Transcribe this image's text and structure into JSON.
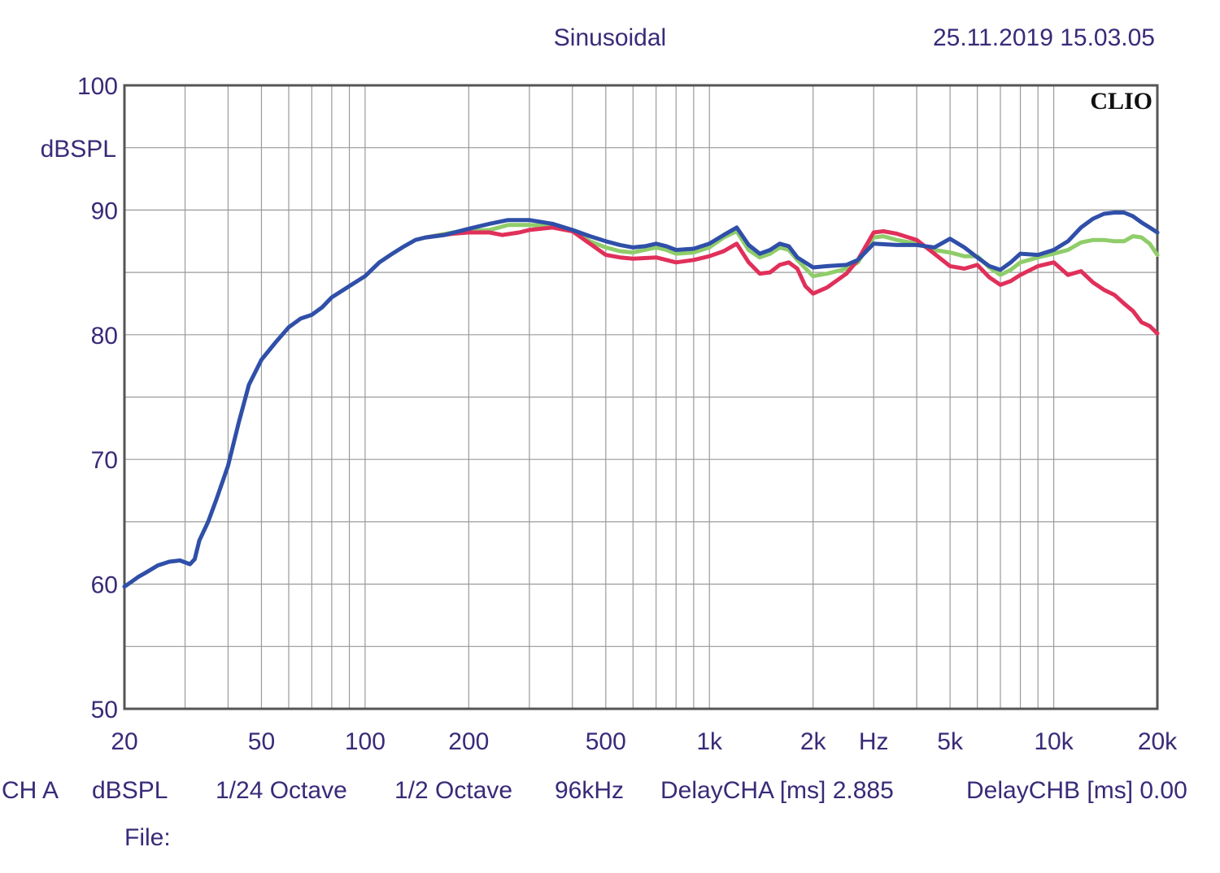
{
  "header": {
    "mode": "Sinusoidal",
    "timestamp": "25.11.2019 15.03.05",
    "brand": "CLIO"
  },
  "footer": {
    "items": [
      "CH A",
      "dBSPL",
      "1/24 Octave",
      "1/2 Octave",
      "96kHz",
      "DelayCHA [ms] 2.885",
      "DelayCHB [ms] 0.00"
    ],
    "file_label": "File:"
  },
  "colors": {
    "text": "#3a2a78",
    "grid": "#9a9a9a",
    "frame": "#555555",
    "blue": "#2f4fa8",
    "red": "#e0305a",
    "green": "#8fcd6a"
  },
  "chart_data": {
    "type": "line",
    "title": "Sinusoidal",
    "xscale": "log",
    "xlim": [
      20,
      20000
    ],
    "ylim": [
      50,
      100
    ],
    "ylabel": "dBSPL",
    "xlabel": "Hz",
    "yticks": [
      {
        "value": 100,
        "label": "100"
      },
      {
        "value": 90,
        "label": "90"
      },
      {
        "value": 80,
        "label": "80"
      },
      {
        "value": 70,
        "label": "70"
      },
      {
        "value": 60,
        "label": "60"
      },
      {
        "value": 50,
        "label": "50"
      }
    ],
    "xticks": [
      {
        "value": 20,
        "label": "20"
      },
      {
        "value": 50,
        "label": "50"
      },
      {
        "value": 100,
        "label": "100"
      },
      {
        "value": 200,
        "label": "200"
      },
      {
        "value": 500,
        "label": "500"
      },
      {
        "value": 1000,
        "label": "1k"
      },
      {
        "value": 2000,
        "label": "2k"
      },
      {
        "value": 3000,
        "label": "Hz"
      },
      {
        "value": 5000,
        "label": "5k"
      },
      {
        "value": 10000,
        "label": "10k"
      },
      {
        "value": 20000,
        "label": "20k"
      }
    ],
    "series": [
      {
        "name": "green",
        "color": "#8fcd6a",
        "points": [
          [
            150,
            87.8
          ],
          [
            180,
            88.2
          ],
          [
            200,
            88.3
          ],
          [
            230,
            88.4
          ],
          [
            260,
            88.8
          ],
          [
            300,
            88.8
          ],
          [
            350,
            88.7
          ],
          [
            400,
            88.3
          ],
          [
            450,
            87.5
          ],
          [
            500,
            87.0
          ],
          [
            550,
            86.7
          ],
          [
            600,
            86.6
          ],
          [
            700,
            87.0
          ],
          [
            750,
            86.8
          ],
          [
            800,
            86.5
          ],
          [
            900,
            86.6
          ],
          [
            1000,
            87.0
          ],
          [
            1100,
            87.8
          ],
          [
            1200,
            88.3
          ],
          [
            1300,
            86.8
          ],
          [
            1400,
            86.2
          ],
          [
            1500,
            86.5
          ],
          [
            1600,
            87.0
          ],
          [
            1700,
            86.8
          ],
          [
            1800,
            86.0
          ],
          [
            2000,
            84.7
          ],
          [
            2200,
            84.9
          ],
          [
            2500,
            85.3
          ],
          [
            2700,
            85.8
          ],
          [
            3000,
            87.8
          ],
          [
            3200,
            87.9
          ],
          [
            3500,
            87.6
          ],
          [
            4000,
            87.3
          ],
          [
            4500,
            86.8
          ],
          [
            5000,
            86.6
          ],
          [
            5500,
            86.3
          ],
          [
            6000,
            86.3
          ],
          [
            6500,
            85.4
          ],
          [
            7000,
            84.8
          ],
          [
            7500,
            85.2
          ],
          [
            8000,
            85.8
          ],
          [
            9000,
            86.2
          ],
          [
            10000,
            86.5
          ],
          [
            11000,
            86.8
          ],
          [
            12000,
            87.4
          ],
          [
            13000,
            87.6
          ],
          [
            14000,
            87.6
          ],
          [
            15000,
            87.5
          ],
          [
            16000,
            87.5
          ],
          [
            17000,
            87.9
          ],
          [
            18000,
            87.8
          ],
          [
            19000,
            87.3
          ],
          [
            20000,
            86.4
          ]
        ]
      },
      {
        "name": "red",
        "color": "#e0305a",
        "points": [
          [
            150,
            87.8
          ],
          [
            180,
            88.1
          ],
          [
            200,
            88.2
          ],
          [
            230,
            88.2
          ],
          [
            250,
            88.0
          ],
          [
            280,
            88.2
          ],
          [
            300,
            88.4
          ],
          [
            350,
            88.6
          ],
          [
            400,
            88.3
          ],
          [
            450,
            87.3
          ],
          [
            500,
            86.4
          ],
          [
            550,
            86.2
          ],
          [
            600,
            86.1
          ],
          [
            700,
            86.2
          ],
          [
            750,
            86.0
          ],
          [
            800,
            85.8
          ],
          [
            900,
            86.0
          ],
          [
            1000,
            86.3
          ],
          [
            1100,
            86.7
          ],
          [
            1200,
            87.3
          ],
          [
            1300,
            85.8
          ],
          [
            1400,
            84.9
          ],
          [
            1500,
            85.0
          ],
          [
            1600,
            85.6
          ],
          [
            1700,
            85.8
          ],
          [
            1800,
            85.3
          ],
          [
            1900,
            83.9
          ],
          [
            2000,
            83.3
          ],
          [
            2200,
            83.8
          ],
          [
            2500,
            84.9
          ],
          [
            2700,
            86.0
          ],
          [
            3000,
            88.2
          ],
          [
            3200,
            88.3
          ],
          [
            3500,
            88.1
          ],
          [
            4000,
            87.6
          ],
          [
            4500,
            86.5
          ],
          [
            5000,
            85.5
          ],
          [
            5500,
            85.3
          ],
          [
            6000,
            85.6
          ],
          [
            6500,
            84.6
          ],
          [
            7000,
            84.0
          ],
          [
            7500,
            84.3
          ],
          [
            8000,
            84.8
          ],
          [
            9000,
            85.5
          ],
          [
            10000,
            85.8
          ],
          [
            11000,
            84.8
          ],
          [
            12000,
            85.1
          ],
          [
            13000,
            84.2
          ],
          [
            14000,
            83.6
          ],
          [
            15000,
            83.2
          ],
          [
            16000,
            82.5
          ],
          [
            17000,
            81.9
          ],
          [
            18000,
            81.0
          ],
          [
            19000,
            80.7
          ],
          [
            20000,
            80.1
          ]
        ]
      },
      {
        "name": "blue",
        "color": "#2f4fa8",
        "points": [
          [
            20,
            59.8
          ],
          [
            21,
            60.2
          ],
          [
            22,
            60.6
          ],
          [
            23,
            60.9
          ],
          [
            25,
            61.5
          ],
          [
            27,
            61.8
          ],
          [
            29,
            61.9
          ],
          [
            31,
            61.6
          ],
          [
            32,
            62.0
          ],
          [
            33,
            63.5
          ],
          [
            35,
            65.0
          ],
          [
            37,
            66.8
          ],
          [
            40,
            69.5
          ],
          [
            43,
            73.0
          ],
          [
            46,
            76.0
          ],
          [
            50,
            78.0
          ],
          [
            55,
            79.4
          ],
          [
            60,
            80.6
          ],
          [
            65,
            81.3
          ],
          [
            70,
            81.6
          ],
          [
            75,
            82.2
          ],
          [
            80,
            83.0
          ],
          [
            90,
            83.9
          ],
          [
            100,
            84.7
          ],
          [
            110,
            85.8
          ],
          [
            120,
            86.5
          ],
          [
            130,
            87.1
          ],
          [
            140,
            87.6
          ],
          [
            150,
            87.8
          ],
          [
            170,
            88.0
          ],
          [
            200,
            88.5
          ],
          [
            230,
            88.9
          ],
          [
            260,
            89.2
          ],
          [
            300,
            89.2
          ],
          [
            350,
            88.9
          ],
          [
            400,
            88.4
          ],
          [
            450,
            87.9
          ],
          [
            500,
            87.5
          ],
          [
            550,
            87.2
          ],
          [
            600,
            87.0
          ],
          [
            650,
            87.1
          ],
          [
            700,
            87.3
          ],
          [
            750,
            87.1
          ],
          [
            800,
            86.8
          ],
          [
            900,
            86.9
          ],
          [
            1000,
            87.3
          ],
          [
            1100,
            88.0
          ],
          [
            1200,
            88.6
          ],
          [
            1300,
            87.2
          ],
          [
            1400,
            86.5
          ],
          [
            1500,
            86.8
          ],
          [
            1600,
            87.3
          ],
          [
            1700,
            87.1
          ],
          [
            1800,
            86.2
          ],
          [
            2000,
            85.4
          ],
          [
            2200,
            85.5
          ],
          [
            2500,
            85.6
          ],
          [
            2700,
            86.0
          ],
          [
            3000,
            87.3
          ],
          [
            3500,
            87.2
          ],
          [
            4000,
            87.2
          ],
          [
            4500,
            87.0
          ],
          [
            5000,
            87.7
          ],
          [
            5500,
            87.0
          ],
          [
            6000,
            86.2
          ],
          [
            6500,
            85.5
          ],
          [
            7000,
            85.2
          ],
          [
            7500,
            85.8
          ],
          [
            8000,
            86.5
          ],
          [
            9000,
            86.4
          ],
          [
            10000,
            86.8
          ],
          [
            11000,
            87.5
          ],
          [
            12000,
            88.6
          ],
          [
            13000,
            89.3
          ],
          [
            14000,
            89.7
          ],
          [
            15000,
            89.8
          ],
          [
            16000,
            89.8
          ],
          [
            17000,
            89.5
          ],
          [
            18000,
            89.0
          ],
          [
            19000,
            88.6
          ],
          [
            20000,
            88.2
          ]
        ]
      }
    ]
  }
}
